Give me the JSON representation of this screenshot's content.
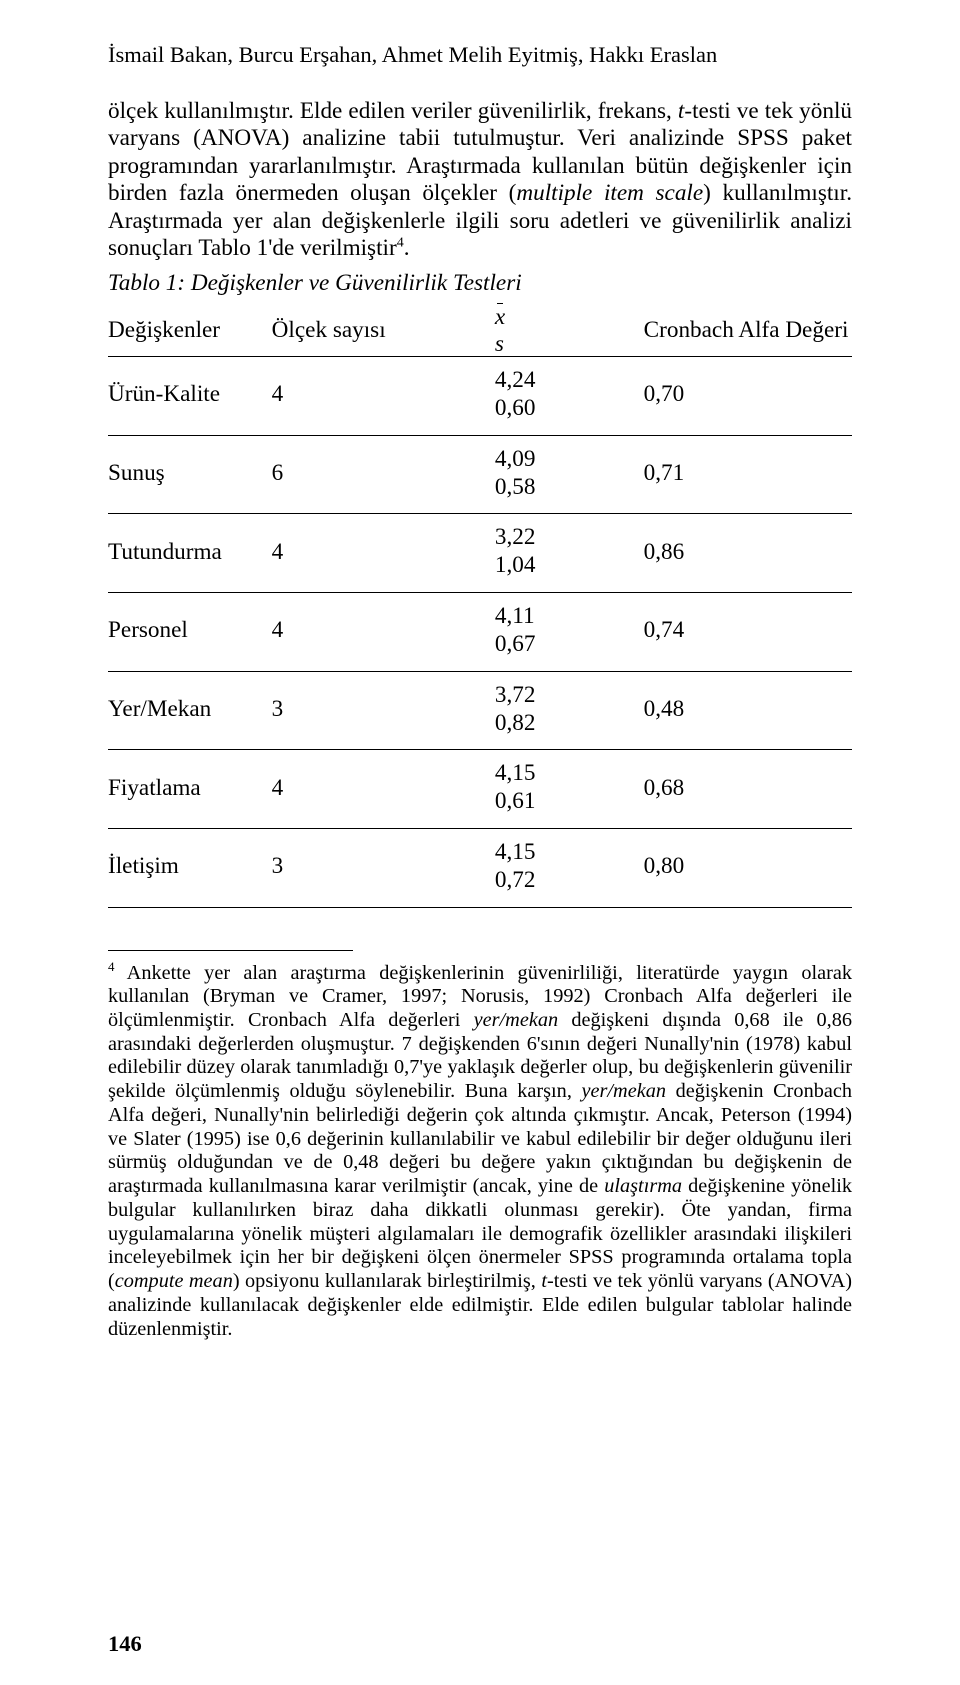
{
  "authors": "İsmail Bakan, Burcu Erşahan, Ahmet Melih Eyitmiş, Hakkı Eraslan",
  "para1_a": "ölçek kullanılmıştır. Elde edilen veriler güvenilirlik, frekans, ",
  "para1_b": "-testi ve tek yönlü varyans (ANOVA) analizine tabii tutulmuştur. Veri analizinde SPSS paket programından yararlanılmıştır. Araştırmada kullanılan bütün değişkenler için birden fazla önermeden oluşan ölçekler (",
  "para1_c": ") kullanılmıştır. Araştırmada yer alan değişkenlerle ilgili soru adetleri ve güvenilirlik analizi sonuçları Tablo 1'de verilmiştir",
  "para1_i1": "t",
  "para1_i2": "multiple item scale",
  "table_caption": "Tablo 1: Değişkenler ve Güvenilirlik Testleri",
  "headers": {
    "var": "Değişkenler",
    "count": "Ölçek sayısı",
    "alpha": "Cronbach Alfa Değeri"
  },
  "rows": [
    {
      "var": "Ürün-Kalite",
      "count": "4",
      "mean": "4,24",
      "sd": "0,60",
      "alpha": "0,70"
    },
    {
      "var": "Sunuş",
      "count": "6",
      "mean": "4,09",
      "sd": "0,58",
      "alpha": "0,71"
    },
    {
      "var": "Tutundurma",
      "count": "4",
      "mean": "3,22",
      "sd": "1,04",
      "alpha": "0,86"
    },
    {
      "var": "Personel",
      "count": "4",
      "mean": "4,11",
      "sd": "0,67",
      "alpha": "0,74"
    },
    {
      "var": "Yer/Mekan",
      "count": "3",
      "mean": "3,72",
      "sd": "0,82",
      "alpha": "0,48"
    },
    {
      "var": "Fiyatlama",
      "count": "4",
      "mean": "4,15",
      "sd": "0,61",
      "alpha": "0,68"
    },
    {
      "var": "İletişim",
      "count": "3",
      "mean": "4,15",
      "sd": "0,72",
      "alpha": "0,80"
    }
  ],
  "footnote_num": "4",
  "fn_a": " Ankette yer alan araştırma değişkenlerinin güvenirliliği, literatürde yaygın olarak kullanılan (Bryman ve Cramer, 1997; Norusis, 1992) Cronbach Alfa değerleri ile ölçümlenmiştir. Cronbach Alfa değerleri ",
  "fn_b": " değişkeni dışında 0,68 ile 0,86 arasındaki değerlerden oluşmuştur. 7 değişkenden 6'sının değeri Nunally'nin (1978) kabul edilebilir düzey olarak tanımladığı 0,7'ye yaklaşık değerler olup, bu değişkenlerin güvenilir şekilde ölçümlenmiş olduğu söylenebilir. Buna karşın, ",
  "fn_c": " değişkenin Cronbach Alfa değeri, Nunally'nin belirlediği değerin çok altında çıkmıştır. Ancak, Peterson (1994) ve Slater (1995) ise 0,6 değerinin kullanılabilir ve kabul edilebilir bir değer olduğunu ileri sürmüş olduğundan ve de 0,48 değeri bu değere yakın çıktığından bu değişkenin de araştırmada kullanılmasına karar verilmiştir (ancak, yine de ",
  "fn_d": " değişkenine yönelik bulgular kullanılırken biraz daha dikkatli olunması gerekir). Öte yandan, firma uygulamalarına yönelik müşteri algılamaları ile demografik özellikler arasındaki ilişkileri inceleyebilmek için her bir değişkeni ölçen önermeler SPSS programında ortalama topla (",
  "fn_e": ") opsiyonu kullanılarak birleştirilmiş, ",
  "fn_f": "-testi ve tek yönlü varyans (ANOVA) analizinde kullanılacak değişkenler elde edilmiştir. Elde edilen bulgular tablolar halinde düzenlenmiştir.",
  "fn_i1": "yer/mekan",
  "fn_i2": "yer/mekan",
  "fn_i3": "ulaştırma",
  "fn_i4": "compute mean",
  "fn_i5": "t",
  "page_number": "146"
}
